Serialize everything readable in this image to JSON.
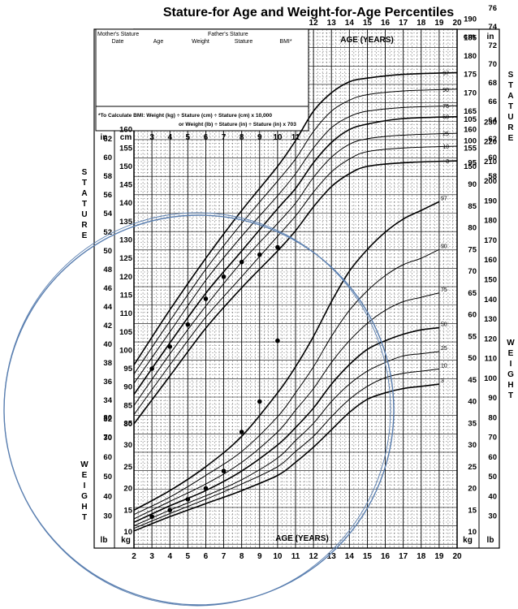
{
  "title": "Stature-for Age and Weight-for-Age Percentiles",
  "form": {
    "mothers_stature_label": "Mother's Stature",
    "fathers_stature_label": "Father's Stature",
    "col_date": "Date",
    "col_age": "Age",
    "col_weight": "Weight",
    "col_stature": "Stature",
    "col_bmi": "BMI*",
    "bmi_note_line1": "*To Calculate BMI: Weight (kg) ÷ Stature (cm) ÷ Stature (cm) x 10,000",
    "bmi_note_line2": "or Weight (lb) ÷ Stature (in) ÷ Stature (in) x 703"
  },
  "labels": {
    "age_years_top": "AGE (YEARS)",
    "age_years_bottom": "AGE (YEARS)",
    "stature_vertical": "STATURE",
    "weight_vertical": "WEIGHT",
    "unit_cm": "cm",
    "unit_in": "in",
    "unit_lb": "lb",
    "unit_kg": "kg"
  },
  "chart_data": {
    "type": "line",
    "title": "Stature-for Age and Weight-for-Age Percentiles",
    "x_ticks_bottom": [
      2,
      3,
      4,
      5,
      6,
      7,
      8,
      9,
      10,
      11,
      12,
      13,
      14,
      15,
      16,
      17,
      18,
      19,
      20
    ],
    "x_ticks_top_left": [
      3,
      4,
      5,
      6,
      7,
      8,
      9,
      10,
      11
    ],
    "x_ticks_top_right": [
      12,
      13,
      14,
      15,
      16,
      17,
      18,
      19,
      20
    ],
    "xlim": [
      2,
      20
    ],
    "stature_cm_ticks_left": [
      80,
      85,
      90,
      95,
      100,
      105,
      110,
      115,
      120,
      125,
      130,
      135,
      140,
      145,
      150,
      155,
      160
    ],
    "stature_in_ticks_left": [
      30,
      32,
      34,
      36,
      38,
      40,
      42,
      44,
      46,
      48,
      50,
      52,
      54,
      56,
      58,
      60,
      62
    ],
    "stature_cm_ticks_right": [
      150,
      155,
      160,
      165,
      170,
      175,
      180,
      185,
      190
    ],
    "stature_in_ticks_right": [
      58,
      60,
      62,
      64,
      66,
      68,
      70,
      72,
      74,
      76
    ],
    "weight_kg_ticks_left": [
      10,
      15,
      20,
      25,
      30,
      35
    ],
    "weight_lb_ticks_left": [
      30,
      40,
      50,
      60,
      70,
      80
    ],
    "weight_kg_ticks_right": [
      10,
      15,
      20,
      25,
      30,
      35,
      40,
      45,
      50,
      55,
      60,
      65,
      70,
      75,
      80,
      85,
      90,
      95,
      100,
      105
    ],
    "weight_lb_ticks_right": [
      30,
      40,
      50,
      60,
      70,
      80,
      90,
      100,
      110,
      120,
      130,
      140,
      150,
      160,
      170,
      180,
      190,
      200,
      210,
      220,
      230
    ],
    "stature_percentiles": [
      {
        "name": "97",
        "values": [
          [
            2,
            96
          ],
          [
            4,
            111
          ],
          [
            6,
            125
          ],
          [
            8,
            138
          ],
          [
            10,
            150
          ],
          [
            11,
            157
          ],
          [
            12,
            165
          ],
          [
            13,
            170
          ],
          [
            14,
            173
          ],
          [
            15,
            174
          ],
          [
            17,
            175
          ],
          [
            20,
            175.5
          ]
        ]
      },
      {
        "name": "90",
        "values": [
          [
            2,
            93.5
          ],
          [
            4,
            108
          ],
          [
            6,
            122
          ],
          [
            8,
            134.5
          ],
          [
            10,
            146
          ],
          [
            11,
            152
          ],
          [
            12,
            159.5
          ],
          [
            13,
            165
          ],
          [
            14,
            168
          ],
          [
            15,
            169.5
          ],
          [
            17,
            170.5
          ],
          [
            20,
            171
          ]
        ]
      },
      {
        "name": "75",
        "values": [
          [
            2,
            91
          ],
          [
            4,
            105
          ],
          [
            6,
            119
          ],
          [
            8,
            131
          ],
          [
            10,
            142
          ],
          [
            11,
            148
          ],
          [
            12,
            155
          ],
          [
            13,
            160.5
          ],
          [
            14,
            163.5
          ],
          [
            15,
            165
          ],
          [
            17,
            166
          ],
          [
            20,
            166.5
          ]
        ]
      },
      {
        "name": "50",
        "values": [
          [
            2,
            88
          ],
          [
            4,
            102
          ],
          [
            6,
            115.5
          ],
          [
            8,
            127
          ],
          [
            10,
            138.5
          ],
          [
            11,
            144
          ],
          [
            12,
            151
          ],
          [
            13,
            156.5
          ],
          [
            14,
            160
          ],
          [
            15,
            161.5
          ],
          [
            17,
            163
          ],
          [
            20,
            163.5
          ]
        ]
      },
      {
        "name": "25",
        "values": [
          [
            2,
            85
          ],
          [
            4,
            99
          ],
          [
            6,
            112
          ],
          [
            8,
            124
          ],
          [
            10,
            134.5
          ],
          [
            11,
            140
          ],
          [
            12,
            147
          ],
          [
            13,
            152.5
          ],
          [
            14,
            156
          ],
          [
            15,
            157.5
          ],
          [
            17,
            158.5
          ],
          [
            20,
            159
          ]
        ]
      },
      {
        "name": "10",
        "values": [
          [
            2,
            82.5
          ],
          [
            4,
            96
          ],
          [
            6,
            109
          ],
          [
            8,
            120
          ],
          [
            10,
            131
          ],
          [
            11,
            136.5
          ],
          [
            12,
            143
          ],
          [
            13,
            148.5
          ],
          [
            14,
            152
          ],
          [
            15,
            154
          ],
          [
            17,
            155
          ],
          [
            20,
            155.5
          ]
        ]
      },
      {
        "name": "3",
        "values": [
          [
            2,
            80
          ],
          [
            4,
            93
          ],
          [
            6,
            106
          ],
          [
            8,
            117
          ],
          [
            10,
            127
          ],
          [
            11,
            132.5
          ],
          [
            12,
            139
          ],
          [
            13,
            144.5
          ],
          [
            14,
            148
          ],
          [
            15,
            150
          ],
          [
            17,
            151
          ],
          [
            20,
            151.5
          ]
        ]
      }
    ],
    "weight_percentiles": [
      {
        "name": "97",
        "values": [
          [
            2,
            15
          ],
          [
            4,
            19.5
          ],
          [
            6,
            25
          ],
          [
            8,
            32
          ],
          [
            10,
            42
          ],
          [
            11,
            48
          ],
          [
            12,
            55
          ],
          [
            13,
            63
          ],
          [
            14,
            70
          ],
          [
            15,
            75
          ],
          [
            16,
            79
          ],
          [
            17,
            82
          ],
          [
            18,
            84
          ],
          [
            19,
            86
          ]
        ]
      },
      {
        "name": "90",
        "values": [
          [
            2,
            14
          ],
          [
            4,
            18
          ],
          [
            6,
            23
          ],
          [
            8,
            28.5
          ],
          [
            10,
            36.5
          ],
          [
            11,
            42
          ],
          [
            12,
            48
          ],
          [
            13,
            55
          ],
          [
            14,
            61
          ],
          [
            15,
            65.5
          ],
          [
            16,
            69
          ],
          [
            17,
            71.5
          ],
          [
            18,
            73
          ],
          [
            19,
            75
          ]
        ]
      },
      {
        "name": "75",
        "values": [
          [
            2,
            13
          ],
          [
            4,
            17
          ],
          [
            6,
            21
          ],
          [
            8,
            26
          ],
          [
            10,
            33
          ],
          [
            11,
            38
          ],
          [
            12,
            43
          ],
          [
            13,
            49
          ],
          [
            14,
            54
          ],
          [
            15,
            58
          ],
          [
            16,
            61
          ],
          [
            17,
            63
          ],
          [
            18,
            64
          ],
          [
            19,
            65
          ]
        ]
      },
      {
        "name": "50",
        "values": [
          [
            2,
            12.2
          ],
          [
            4,
            16
          ],
          [
            6,
            19.5
          ],
          [
            8,
            24
          ],
          [
            10,
            30
          ],
          [
            11,
            34
          ],
          [
            12,
            38.5
          ],
          [
            13,
            44
          ],
          [
            14,
            48.5
          ],
          [
            15,
            52
          ],
          [
            16,
            54
          ],
          [
            17,
            55.5
          ],
          [
            18,
            56.5
          ],
          [
            19,
            57
          ]
        ]
      },
      {
        "name": "25",
        "values": [
          [
            2,
            11.4
          ],
          [
            4,
            15
          ],
          [
            6,
            18.3
          ],
          [
            8,
            22
          ],
          [
            10,
            27
          ],
          [
            11,
            31
          ],
          [
            12,
            35
          ],
          [
            13,
            40
          ],
          [
            14,
            44
          ],
          [
            15,
            47
          ],
          [
            16,
            49
          ],
          [
            17,
            50.5
          ],
          [
            18,
            51
          ],
          [
            19,
            51.5
          ]
        ]
      },
      {
        "name": "10",
        "values": [
          [
            2,
            10.8
          ],
          [
            4,
            14.2
          ],
          [
            6,
            17.5
          ],
          [
            8,
            21
          ],
          [
            10,
            25
          ],
          [
            11,
            28.5
          ],
          [
            12,
            32
          ],
          [
            13,
            36.5
          ],
          [
            14,
            40.5
          ],
          [
            15,
            43.5
          ],
          [
            16,
            45.5
          ],
          [
            17,
            46.5
          ],
          [
            18,
            47
          ],
          [
            19,
            47.5
          ]
        ]
      },
      {
        "name": "3",
        "values": [
          [
            2,
            10.2
          ],
          [
            4,
            13.5
          ],
          [
            6,
            16.5
          ],
          [
            8,
            19.5
          ],
          [
            10,
            23
          ],
          [
            11,
            26
          ],
          [
            12,
            29.5
          ],
          [
            13,
            33.5
          ],
          [
            14,
            37.5
          ],
          [
            15,
            40.5
          ],
          [
            16,
            42
          ],
          [
            17,
            43
          ],
          [
            18,
            43.5
          ],
          [
            19,
            44
          ]
        ]
      }
    ],
    "stature_measurements": [
      [
        3,
        95
      ],
      [
        4,
        101
      ],
      [
        5,
        107
      ],
      [
        6,
        114
      ],
      [
        7,
        120
      ],
      [
        8,
        124
      ],
      [
        9,
        126
      ],
      [
        10,
        128
      ]
    ],
    "weight_measurements": [
      [
        3,
        13.5
      ],
      [
        4,
        15
      ],
      [
        5,
        17.5
      ],
      [
        6,
        20
      ],
      [
        7,
        24
      ],
      [
        8,
        33
      ],
      [
        9,
        40
      ],
      [
        10,
        54
      ]
    ],
    "annotation_circle_color": "#5a7fb0",
    "line_color": "#000000",
    "grid": true
  }
}
